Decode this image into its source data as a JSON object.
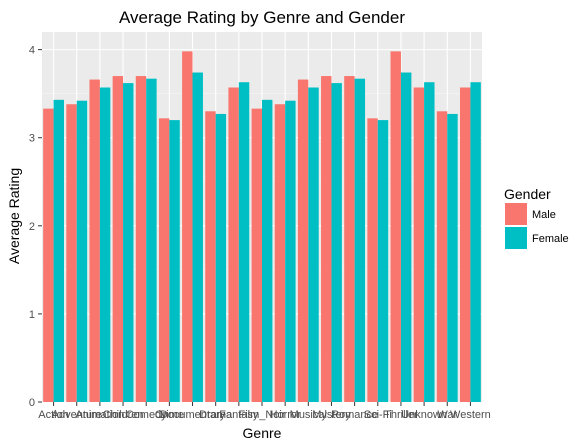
{
  "chart_data": {
    "type": "bar",
    "title": "Average Rating by Genre and Gender",
    "xlabel": "Genre",
    "ylabel": "Average Rating",
    "ylim": [
      0,
      4.2
    ],
    "yticks": [
      0,
      1,
      2,
      3,
      4
    ],
    "grid": true,
    "legend": {
      "title": "Gender",
      "placement": "right"
    },
    "categories": [
      "Action",
      "Adventure",
      "Animation",
      "Children",
      "Comedy",
      "Crime",
      "Documentary",
      "Drama",
      "Fantasy",
      "Film_Noir",
      "Horror",
      "Musical",
      "Mystery",
      "Romance",
      "Sci-Fi",
      "Thriller",
      "Unknown",
      "War",
      "Western"
    ],
    "series": [
      {
        "name": "Male",
        "color": "#F8766D",
        "values": [
          3.33,
          3.38,
          3.66,
          3.7,
          3.7,
          3.22,
          3.98,
          3.3,
          3.57,
          3.33,
          3.38,
          3.66,
          3.7,
          3.7,
          3.22,
          3.98,
          3.57,
          3.3,
          3.57
        ]
      },
      {
        "name": "Female",
        "color": "#00BFC4",
        "values": [
          3.43,
          3.42,
          3.57,
          3.62,
          3.67,
          3.2,
          3.74,
          3.27,
          3.63,
          3.43,
          3.42,
          3.57,
          3.62,
          3.67,
          3.2,
          3.74,
          3.63,
          3.27,
          3.63
        ]
      }
    ]
  }
}
